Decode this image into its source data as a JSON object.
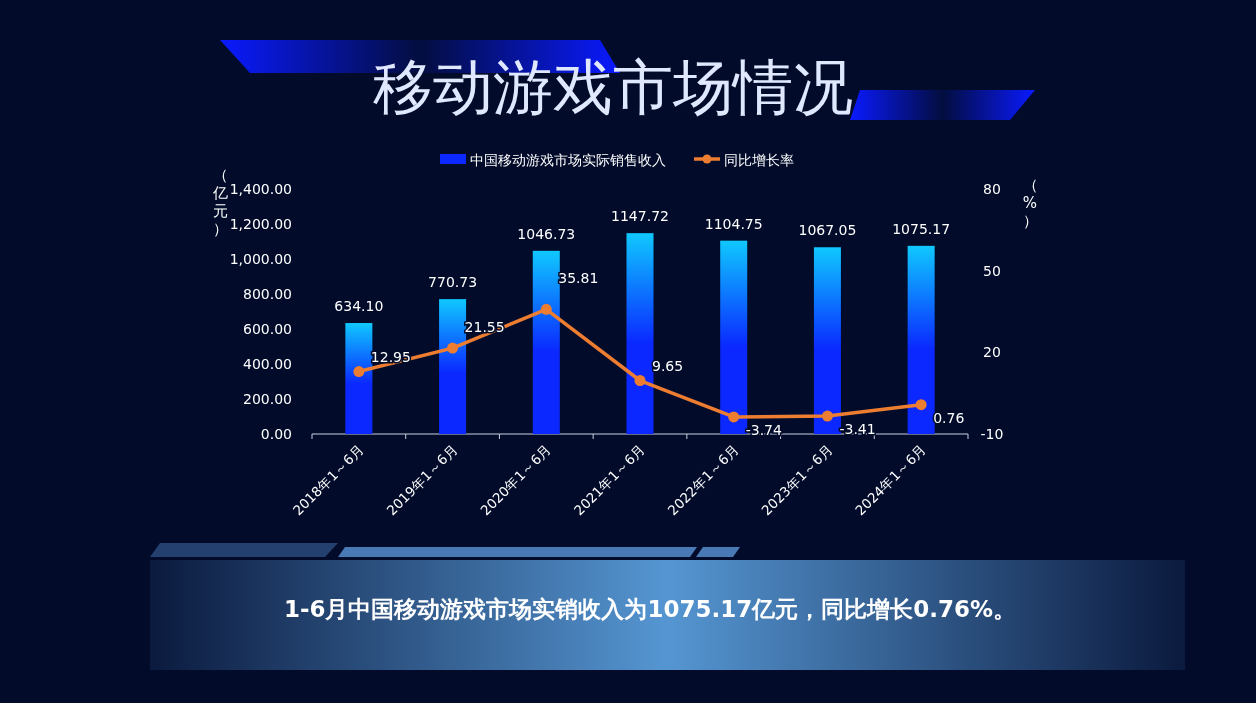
{
  "chart_data": {
    "type": "bar",
    "title": "移动游戏市场情况",
    "ylabel": "（亿元）",
    "y2label": "（%）",
    "categories": [
      "2018年1～6月",
      "2019年1～6月",
      "2020年1～6月",
      "2021年1～6月",
      "2022年1～6月",
      "2023年1～6月",
      "2024年1～6月"
    ],
    "series": [
      {
        "name": "中国移动游戏市场实际销售收入",
        "color": "#0a28ff",
        "values": [
          634.1,
          770.73,
          1046.73,
          1147.72,
          1104.75,
          1067.05,
          1075.17
        ],
        "value_labels": [
          "634.10",
          "770.73",
          "1046.73",
          "1147.72",
          "1104.75",
          "1067.05",
          "1075.17"
        ]
      },
      {
        "name": "同比增长率",
        "type": "line",
        "axis": "y2",
        "color": "#ed7d31",
        "marker": "circle",
        "values": [
          12.95,
          21.55,
          35.81,
          9.65,
          -3.74,
          -3.41,
          0.76
        ],
        "value_labels": [
          "12.95",
          "21.55",
          "35.81",
          "9.65",
          "-3.74",
          "-3.41",
          "0.76"
        ]
      }
    ],
    "ylim": [
      0,
      1400
    ],
    "yticks": [
      {
        "value": 0,
        "label": "0.00"
      },
      {
        "value": 200,
        "label": "200.00"
      },
      {
        "value": 400,
        "label": "400.00"
      },
      {
        "value": 600,
        "label": "600.00"
      },
      {
        "value": 800,
        "label": "800.00"
      },
      {
        "value": 1000,
        "label": "1,000.00"
      },
      {
        "value": 1200,
        "label": "1,200.00"
      },
      {
        "value": 1400,
        "label": "1,400.00"
      }
    ],
    "y2lim": [
      -10,
      80
    ],
    "y2ticks": [
      -10,
      20,
      50,
      80
    ],
    "legend": "top",
    "annotations": [
      "1-6月中国移动游戏市场实销收入为1075.17亿元，同比增长0.76%。"
    ]
  }
}
